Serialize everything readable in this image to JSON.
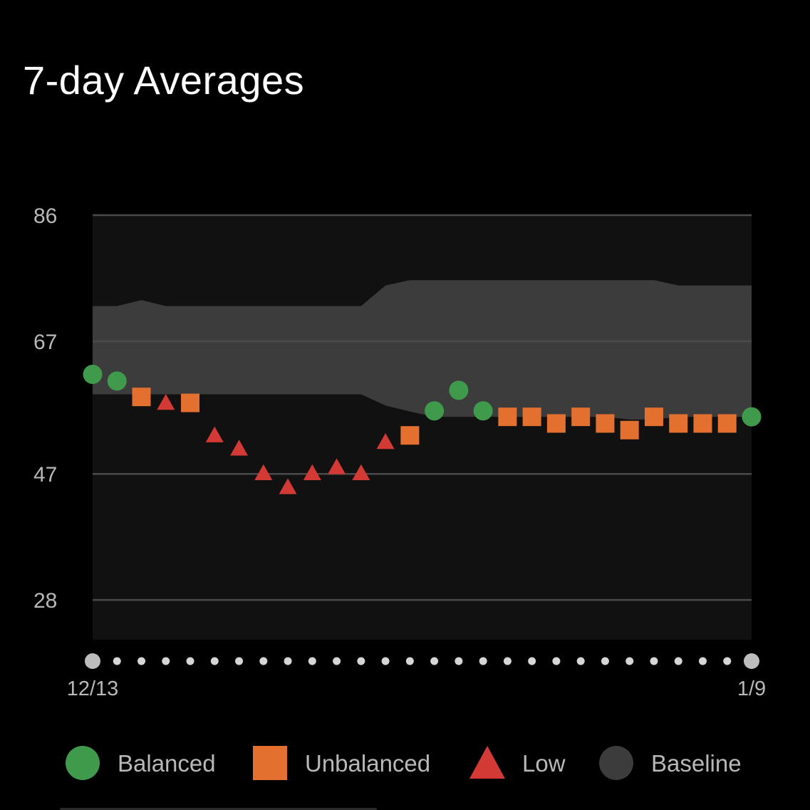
{
  "title": "7-day Averages",
  "colors": {
    "background": "#000000",
    "plot_area": "#111111",
    "baseline_band": "#3c3c3c",
    "gridline": "#4a4a4a",
    "balanced": "#3f9b4b",
    "unbalanced": "#e3702f",
    "low": "#d33a35",
    "axis_text": "#b8b8b8",
    "date_dot": "#d6d6d6",
    "endpoint_dot": "#bdbdbd"
  },
  "chart_data": {
    "type": "scatter",
    "title": "7-day Averages",
    "y_ticks": [
      "86",
      "67",
      "47",
      "28"
    ],
    "ylim": [
      22,
      86
    ],
    "x_start_label": "12/13",
    "x_end_label": "1/9",
    "grid": "horizontal",
    "legend_position": "bottom",
    "legend": [
      {
        "label": "Balanced",
        "shape": "circle",
        "color_key": "balanced"
      },
      {
        "label": "Unbalanced",
        "shape": "square",
        "color_key": "unbalanced"
      },
      {
        "label": "Low",
        "shape": "triangle",
        "color_key": "low"
      },
      {
        "label": "Baseline",
        "shape": "circle",
        "color_key": "baseline_band"
      }
    ],
    "dates": [
      "12/13",
      "12/14",
      "12/15",
      "12/16",
      "12/17",
      "12/18",
      "12/19",
      "12/20",
      "12/21",
      "12/22",
      "12/23",
      "12/24",
      "12/25",
      "12/26",
      "12/27",
      "12/28",
      "12/29",
      "12/30",
      "12/31",
      "1/1",
      "1/2",
      "1/3",
      "1/4",
      "1/5",
      "1/6",
      "1/7",
      "1/8",
      "1/9"
    ],
    "baseline_upper": [
      72.3,
      72.3,
      73.2,
      72.3,
      72.3,
      72.3,
      72.3,
      72.3,
      72.3,
      72.3,
      72.3,
      72.3,
      75.4,
      76.2,
      76.2,
      76.2,
      76.2,
      76.2,
      76.2,
      76.2,
      76.2,
      76.2,
      76.2,
      76.2,
      75.4,
      75.4,
      75.4,
      75.4
    ],
    "baseline_lower": [
      59.0,
      59.0,
      59.0,
      59.0,
      59.0,
      59.0,
      59.0,
      59.0,
      59.0,
      59.0,
      59.0,
      59.0,
      57.3,
      56.4,
      55.6,
      55.6,
      55.6,
      55.6,
      55.6,
      55.6,
      55.6,
      55.6,
      55.2,
      55.2,
      55.6,
      55.6,
      55.6,
      55.6
    ],
    "points": [
      {
        "date": "12/13",
        "value": 62.0,
        "status": "Balanced"
      },
      {
        "date": "12/14",
        "value": 61.0,
        "status": "Balanced"
      },
      {
        "date": "12/15",
        "value": 58.6,
        "status": "Unbalanced"
      },
      {
        "date": "12/16",
        "value": 57.7,
        "status": "Low"
      },
      {
        "date": "12/17",
        "value": 57.7,
        "status": "Unbalanced"
      },
      {
        "date": "12/18",
        "value": 52.8,
        "status": "Low"
      },
      {
        "date": "12/19",
        "value": 50.8,
        "status": "Low"
      },
      {
        "date": "12/20",
        "value": 47.1,
        "status": "Low"
      },
      {
        "date": "12/21",
        "value": 45.0,
        "status": "Low"
      },
      {
        "date": "12/22",
        "value": 47.1,
        "status": "Low"
      },
      {
        "date": "12/23",
        "value": 48.0,
        "status": "Low"
      },
      {
        "date": "12/24",
        "value": 47.1,
        "status": "Low"
      },
      {
        "date": "12/25",
        "value": 51.8,
        "status": "Low"
      },
      {
        "date": "12/26",
        "value": 52.8,
        "status": "Unbalanced"
      },
      {
        "date": "12/27",
        "value": 56.5,
        "status": "Balanced"
      },
      {
        "date": "12/28",
        "value": 59.6,
        "status": "Balanced"
      },
      {
        "date": "12/29",
        "value": 56.5,
        "status": "Balanced"
      },
      {
        "date": "12/30",
        "value": 55.6,
        "status": "Unbalanced"
      },
      {
        "date": "12/31",
        "value": 55.6,
        "status": "Unbalanced"
      },
      {
        "date": "1/1",
        "value": 54.6,
        "status": "Unbalanced"
      },
      {
        "date": "1/2",
        "value": 55.6,
        "status": "Unbalanced"
      },
      {
        "date": "1/3",
        "value": 54.6,
        "status": "Unbalanced"
      },
      {
        "date": "1/4",
        "value": 53.6,
        "status": "Unbalanced"
      },
      {
        "date": "1/5",
        "value": 55.6,
        "status": "Unbalanced"
      },
      {
        "date": "1/6",
        "value": 54.6,
        "status": "Unbalanced"
      },
      {
        "date": "1/7",
        "value": 54.6,
        "status": "Unbalanced"
      },
      {
        "date": "1/8",
        "value": 54.6,
        "status": "Unbalanced"
      },
      {
        "date": "1/9",
        "value": 55.6,
        "status": "Balanced"
      }
    ]
  }
}
